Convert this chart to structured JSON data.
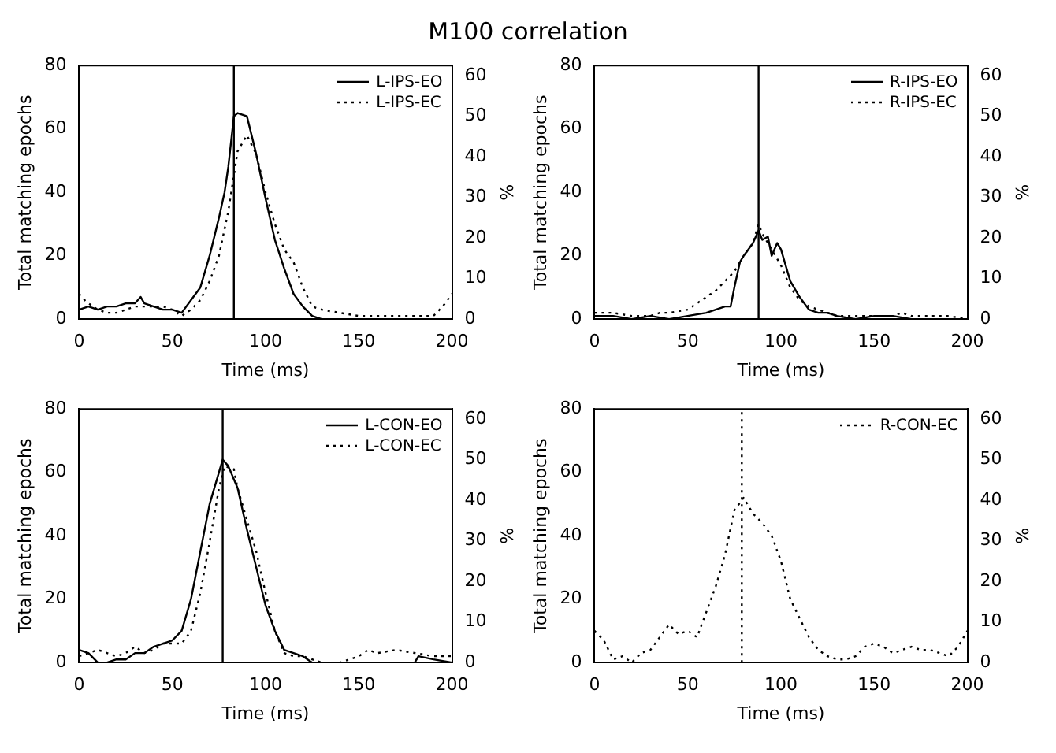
{
  "chart_data": [
    {
      "type": "line",
      "title": "M100 correlation",
      "xlabel": "Time (ms)",
      "ylabel": "Total matching epochs",
      "y2label": "%",
      "xlim": [
        0,
        200
      ],
      "xticks": [
        0,
        50,
        100,
        150,
        200
      ],
      "ylim": [
        0,
        80
      ],
      "yticks": [
        0,
        20,
        40,
        60,
        80
      ],
      "y2lim": [
        0,
        62.5
      ],
      "y2ticks": [
        0,
        10,
        20,
        30,
        40,
        50,
        60
      ],
      "grid": false,
      "legend": "top right",
      "marker": "none",
      "ref_lines": [
        {
          "axis": "x",
          "value": 83,
          "line_style": "solid"
        }
      ],
      "series": [
        {
          "name": "L-IPS-EO",
          "color": "#000000",
          "line_style": "solid",
          "x": [
            0,
            5,
            10,
            15,
            20,
            25,
            30,
            33,
            35,
            40,
            45,
            50,
            55,
            60,
            65,
            70,
            75,
            78,
            80,
            83,
            85,
            90,
            95,
            100,
            105,
            110,
            115,
            120,
            125,
            130,
            140,
            150,
            160,
            170,
            180,
            190,
            200
          ],
          "values": [
            3,
            4,
            3,
            4,
            4,
            5,
            5,
            7,
            5,
            4,
            3,
            3,
            2,
            6,
            10,
            20,
            32,
            40,
            48,
            64,
            65,
            64,
            52,
            38,
            25,
            16,
            8,
            4,
            1,
            0,
            0,
            0,
            0,
            0,
            0,
            0,
            0
          ]
        },
        {
          "name": "L-IPS-EC",
          "color": "#000000",
          "line_style": "dotted",
          "x": [
            0,
            3,
            5,
            10,
            15,
            20,
            25,
            30,
            40,
            45,
            50,
            55,
            60,
            65,
            70,
            75,
            80,
            85,
            90,
            95,
            100,
            105,
            110,
            115,
            120,
            125,
            130,
            140,
            150,
            160,
            170,
            180,
            190,
            195,
            200
          ],
          "values": [
            8,
            6,
            5,
            3,
            2,
            2,
            3,
            4,
            4,
            4,
            3,
            1,
            3,
            6,
            12,
            20,
            34,
            53,
            58,
            52,
            40,
            30,
            22,
            18,
            10,
            4,
            3,
            2,
            1,
            1,
            1,
            1,
            1,
            4,
            8
          ]
        }
      ]
    },
    {
      "type": "line",
      "xlabel": "Time (ms)",
      "ylabel": "Total matching epochs",
      "y2label": "%",
      "xlim": [
        0,
        200
      ],
      "xticks": [
        0,
        50,
        100,
        150,
        200
      ],
      "ylim": [
        0,
        80
      ],
      "yticks": [
        0,
        20,
        40,
        60,
        80
      ],
      "y2lim": [
        0,
        62.5
      ],
      "y2ticks": [
        0,
        10,
        20,
        30,
        40,
        50,
        60
      ],
      "grid": false,
      "legend": "top right",
      "marker": "none",
      "ref_lines": [
        {
          "axis": "x",
          "value": 88,
          "line_style": "solid"
        }
      ],
      "series": [
        {
          "name": "R-IPS-EO",
          "color": "#000000",
          "line_style": "solid",
          "x": [
            0,
            10,
            20,
            30,
            40,
            50,
            60,
            65,
            70,
            73,
            75,
            78,
            80,
            85,
            88,
            90,
            93,
            95,
            98,
            100,
            105,
            110,
            115,
            120,
            125,
            130,
            140,
            150,
            160,
            170,
            180,
            190,
            200
          ],
          "values": [
            1,
            1,
            0,
            1,
            0,
            1,
            2,
            3,
            4,
            4,
            10,
            18,
            20,
            24,
            28,
            25,
            26,
            20,
            24,
            22,
            12,
            7,
            3,
            2,
            2,
            1,
            0,
            1,
            1,
            0,
            0,
            0,
            0
          ]
        },
        {
          "name": "R-IPS-EC",
          "color": "#000000",
          "line_style": "dotted",
          "x": [
            0,
            10,
            20,
            30,
            35,
            40,
            50,
            55,
            60,
            65,
            70,
            75,
            80,
            85,
            88,
            90,
            95,
            100,
            105,
            110,
            115,
            120,
            125,
            130,
            140,
            150,
            160,
            165,
            170,
            180,
            190,
            200
          ],
          "values": [
            2,
            2,
            1,
            1,
            2,
            2,
            3,
            5,
            7,
            9,
            12,
            15,
            20,
            24,
            30,
            27,
            22,
            17,
            10,
            6,
            4,
            3,
            2,
            1,
            1,
            1,
            1,
            2,
            1,
            1,
            1,
            0
          ]
        }
      ]
    },
    {
      "type": "line",
      "xlabel": "Time (ms)",
      "ylabel": "Total matching epochs",
      "y2label": "%",
      "xlim": [
        0,
        200
      ],
      "xticks": [
        0,
        50,
        100,
        150,
        200
      ],
      "ylim": [
        0,
        80
      ],
      "yticks": [
        0,
        20,
        40,
        60,
        80
      ],
      "y2lim": [
        0,
        62.5
      ],
      "y2ticks": [
        0,
        10,
        20,
        30,
        40,
        50,
        60
      ],
      "grid": false,
      "legend": "top right",
      "marker": "none",
      "ref_lines": [
        {
          "axis": "x",
          "value": 77,
          "line_style": "solid"
        }
      ],
      "series": [
        {
          "name": "L-CON-EO",
          "color": "#000000",
          "line_style": "solid",
          "x": [
            0,
            5,
            10,
            15,
            20,
            25,
            30,
            35,
            40,
            45,
            50,
            55,
            60,
            65,
            70,
            75,
            77,
            80,
            85,
            90,
            95,
            100,
            105,
            110,
            115,
            120,
            125,
            130,
            150,
            170,
            180,
            182,
            190,
            200
          ],
          "values": [
            4,
            3,
            0,
            0,
            1,
            1,
            3,
            3,
            5,
            6,
            7,
            10,
            20,
            35,
            50,
            60,
            64,
            62,
            55,
            42,
            30,
            18,
            10,
            4,
            3,
            2,
            0,
            0,
            0,
            0,
            0,
            2,
            1,
            0
          ]
        },
        {
          "name": "L-CON-EC",
          "color": "#000000",
          "line_style": "dotted",
          "x": [
            0,
            5,
            10,
            15,
            20,
            25,
            30,
            35,
            40,
            45,
            50,
            55,
            60,
            65,
            70,
            75,
            78,
            83,
            85,
            90,
            95,
            100,
            105,
            110,
            115,
            120,
            125,
            130,
            140,
            150,
            155,
            160,
            170,
            180,
            190,
            200
          ],
          "values": [
            2,
            3,
            4,
            3,
            2,
            3,
            5,
            3,
            4,
            6,
            6,
            6,
            10,
            22,
            38,
            55,
            62,
            61,
            55,
            45,
            35,
            22,
            10,
            3,
            2,
            2,
            1,
            0,
            0,
            2,
            4,
            3,
            4,
            3,
            2,
            2
          ]
        }
      ]
    },
    {
      "type": "line",
      "xlabel": "Time (ms)",
      "ylabel": "Total matching epochs",
      "y2label": "%",
      "xlim": [
        0,
        200
      ],
      "xticks": [
        0,
        50,
        100,
        150,
        200
      ],
      "ylim": [
        0,
        80
      ],
      "yticks": [
        0,
        20,
        40,
        60,
        80
      ],
      "y2lim": [
        0,
        62.5
      ],
      "y2ticks": [
        0,
        10,
        20,
        30,
        40,
        50,
        60
      ],
      "grid": false,
      "legend": "top right",
      "marker": "none",
      "ref_lines": [
        {
          "axis": "x",
          "value": 79,
          "line_style": "dotted"
        }
      ],
      "series": [
        {
          "name": "R-CON-EC",
          "color": "#000000",
          "line_style": "dotted",
          "x": [
            0,
            5,
            10,
            15,
            20,
            25,
            30,
            35,
            40,
            45,
            50,
            55,
            60,
            65,
            70,
            75,
            80,
            85,
            90,
            95,
            100,
            105,
            110,
            115,
            120,
            125,
            130,
            135,
            140,
            145,
            150,
            155,
            160,
            165,
            170,
            175,
            180,
            185,
            190,
            195,
            200
          ],
          "values": [
            10,
            7,
            1,
            2,
            0,
            3,
            4,
            8,
            12,
            9,
            10,
            8,
            16,
            24,
            34,
            48,
            52,
            47,
            44,
            40,
            32,
            20,
            14,
            8,
            4,
            2,
            1,
            1,
            2,
            5,
            6,
            5,
            3,
            4,
            5,
            4,
            4,
            3,
            2,
            5,
            10
          ]
        }
      ]
    }
  ]
}
